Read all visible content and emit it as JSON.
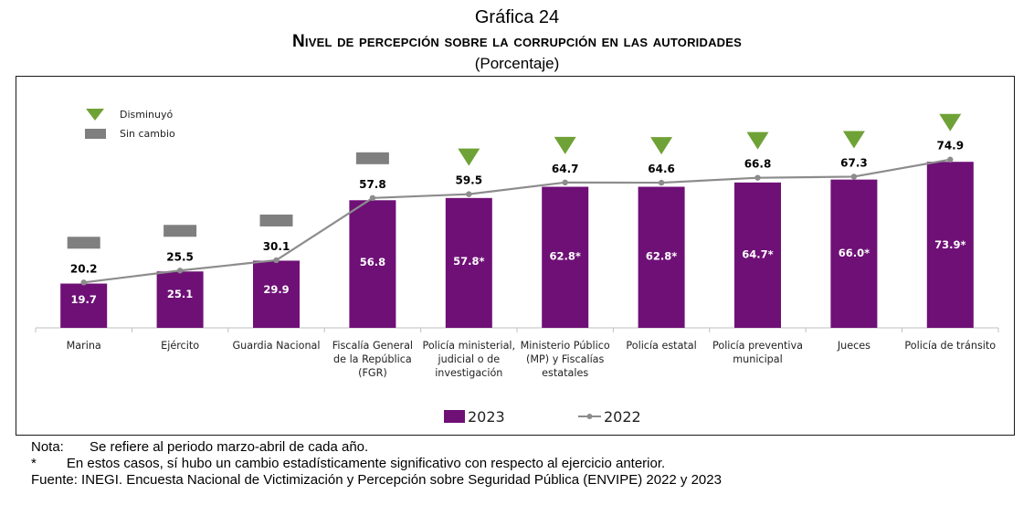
{
  "header": {
    "number": "Gráfica 24",
    "title": "Nivel de percepción sobre la corrupción en las autoridades",
    "subtitle": "(Porcentaje)"
  },
  "colors": {
    "bar": "#6e1076",
    "line": "#8c8c8c",
    "triangle_down": "#6fa236",
    "dash_nochange": "#7f7f7f",
    "axis": "#bfbfbf"
  },
  "chart_data": {
    "type": "bar",
    "categories": [
      [
        "Marina"
      ],
      [
        "Ejército"
      ],
      [
        "Guardia Nacional"
      ],
      [
        "Fiscalía General",
        "de la República",
        "(FGR)"
      ],
      [
        "Policía ministerial,",
        "judicial o de",
        "investigación"
      ],
      [
        "Ministerio Público",
        "(MP) y Fiscalías",
        "estatales"
      ],
      [
        "Policía estatal"
      ],
      [
        "Policía preventiva",
        "municipal"
      ],
      [
        "Jueces"
      ],
      [
        "Policía de tránsito"
      ]
    ],
    "series": [
      {
        "name": "2023",
        "type": "bar",
        "values": [
          19.7,
          25.1,
          29.9,
          56.8,
          57.8,
          62.8,
          62.8,
          64.7,
          66.0,
          73.9
        ],
        "labels": [
          "19.7",
          "25.1",
          "29.9",
          "56.8",
          "57.8*",
          "62.8*",
          "62.8*",
          "64.7*",
          "66.0*",
          "73.9*"
        ]
      },
      {
        "name": "2022",
        "type": "line",
        "values": [
          20.2,
          25.5,
          30.1,
          57.8,
          59.5,
          64.7,
          64.6,
          66.8,
          67.3,
          74.9
        ],
        "labels": [
          "20.2",
          "25.5",
          "30.1",
          "57.8",
          "59.5",
          "64.7",
          "64.6",
          "66.8",
          "67.3",
          "74.9"
        ]
      }
    ],
    "change_markers": [
      "sin-cambio",
      "sin-cambio",
      "sin-cambio",
      "sin-cambio",
      "disminuyo",
      "disminuyo",
      "disminuyo",
      "disminuyo",
      "disminuyo",
      "disminuyo"
    ],
    "marker_legend": [
      {
        "key": "disminuyo",
        "label": "Disminuyó",
        "shape": "triangle-down"
      },
      {
        "key": "sin-cambio",
        "label": "Sin cambio",
        "shape": "dash"
      }
    ],
    "ylim": [
      0,
      100
    ],
    "grid": false,
    "legend_position": "bottom"
  },
  "notes": {
    "nota_key": "Nota:",
    "nota_text": "Se refiere al periodo marzo-abril de cada año.",
    "star_key": "*",
    "star_text": "En estos casos, sí hubo un cambio estadísticamente significativo con respecto al ejercicio anterior.",
    "fuente": "Fuente: INEGI. Encuesta Nacional de Victimización y Percepción sobre Seguridad Pública (ENVIPE) 2022 y 2023"
  }
}
